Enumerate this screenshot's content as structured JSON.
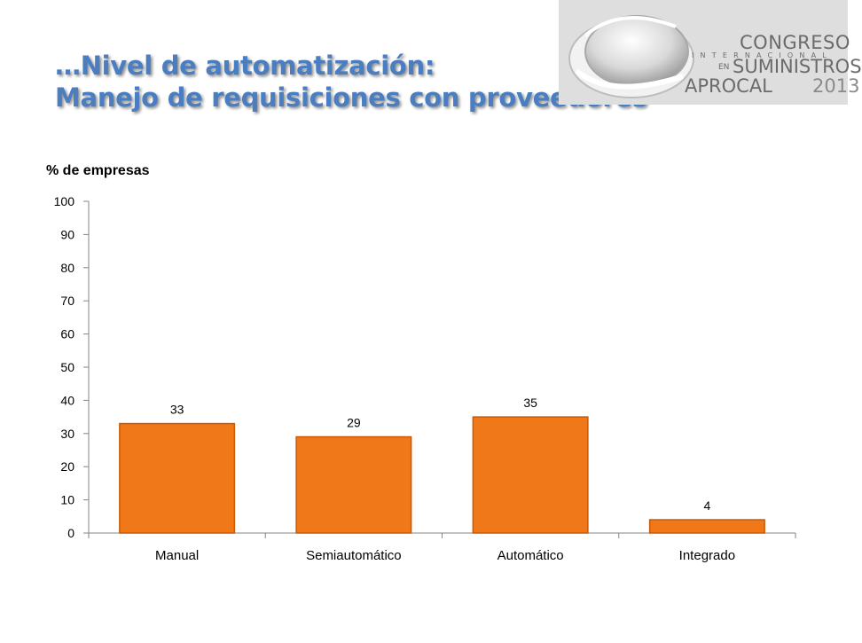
{
  "title": {
    "line1": "…Nivel de automatización:",
    "line2": "Manejo de requisiciones con proveedores"
  },
  "logo": {
    "line1": "CONGRESO",
    "line2": "INTERNACIONAL",
    "en": "EN",
    "line3": "SUMINISTROS",
    "line4": "APROCAL",
    "year": "2013"
  },
  "chart_data": {
    "type": "bar",
    "ylabel": "% de empresas",
    "categories": [
      "Manual",
      "Semiautomático",
      "Automático",
      "Integrado"
    ],
    "values": [
      33,
      29,
      35,
      4
    ],
    "data_labels": [
      "33",
      "29",
      "35",
      "4"
    ],
    "ylim": [
      0,
      100
    ],
    "yticks": [
      0,
      10,
      20,
      30,
      40,
      50,
      60,
      70,
      80,
      90,
      100
    ],
    "grid": false,
    "legend": "none",
    "bar_color": "#f07818",
    "bar_edge_color": "#c85a08"
  }
}
